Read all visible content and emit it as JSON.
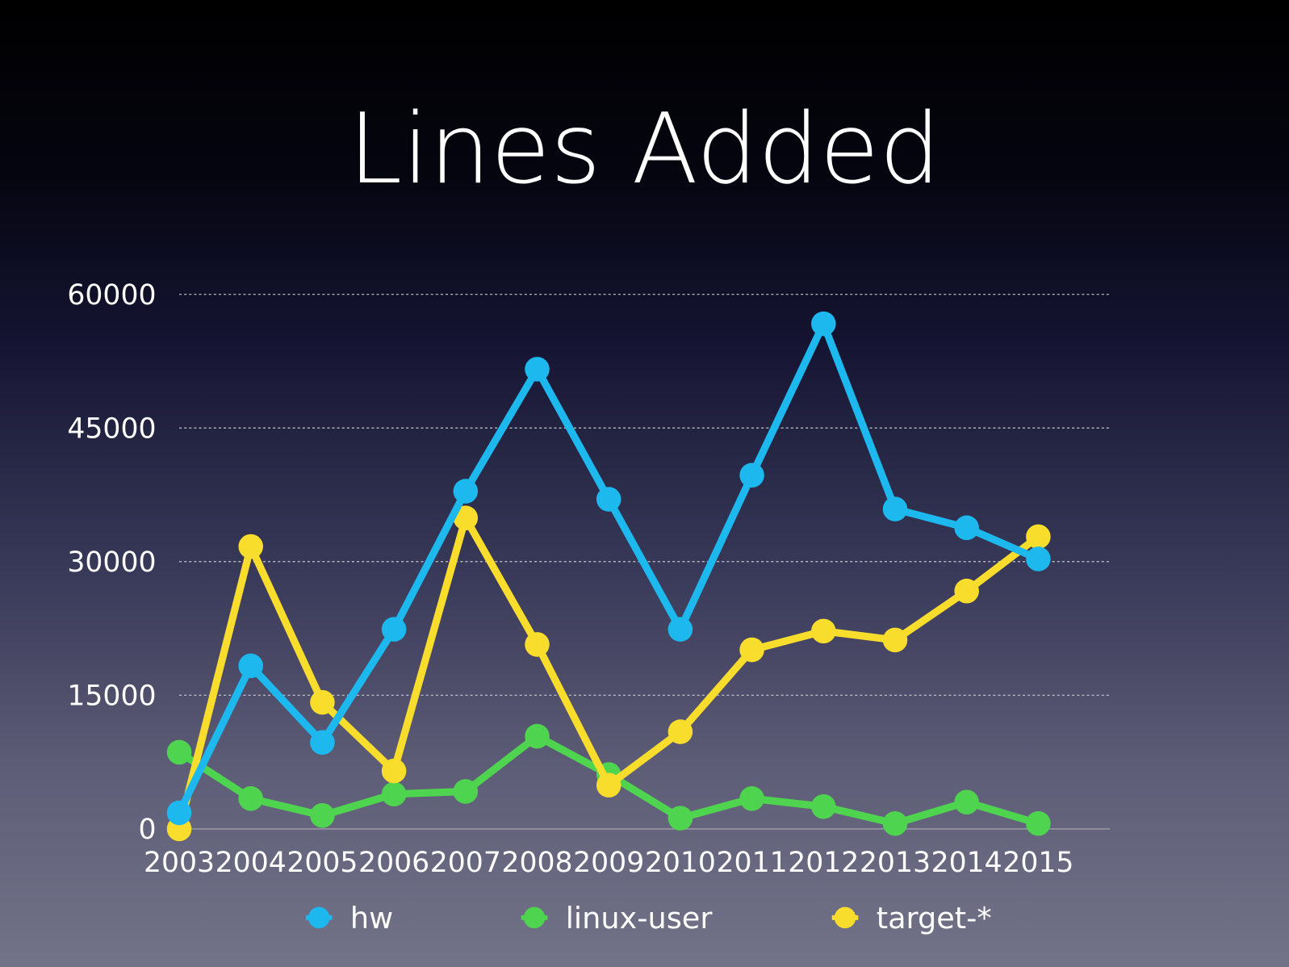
{
  "chart_data": {
    "type": "line",
    "title": "Lines Added",
    "xlabel": "",
    "ylabel": "",
    "categories": [
      "2003",
      "2004",
      "2005",
      "2006",
      "2007",
      "2008",
      "2009",
      "2010",
      "2011",
      "2012",
      "2013",
      "2014",
      "2015"
    ],
    "yticks": [
      "0",
      "15000",
      "30000",
      "45000",
      "60000"
    ],
    "ylim": [
      0,
      60000
    ],
    "grid": true,
    "legend": "bottom",
    "series": [
      {
        "name": "hw",
        "color": "#1cb8ee",
        "values": [
          1800,
          18300,
          9700,
          22400,
          37900,
          51600,
          37000,
          22400,
          39700,
          56700,
          35900,
          33800,
          30300
        ]
      },
      {
        "name": "linux-user",
        "color": "#4fd44f",
        "values": [
          8600,
          3400,
          1500,
          3900,
          4200,
          10400,
          6100,
          1200,
          3400,
          2500,
          600,
          3000,
          600
        ]
      },
      {
        "name": "target-*",
        "color": "#f8dd2c",
        "values": [
          0,
          31700,
          14200,
          6500,
          34900,
          20700,
          4900,
          10900,
          20100,
          22200,
          21200,
          26700,
          32800
        ]
      }
    ]
  }
}
